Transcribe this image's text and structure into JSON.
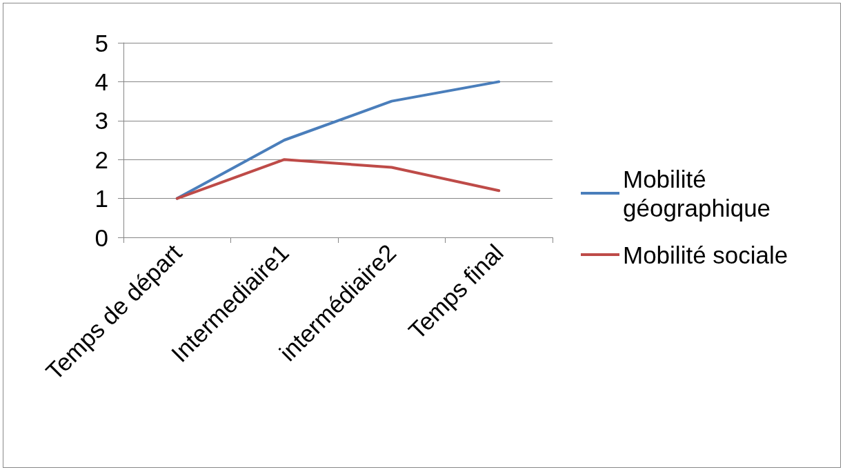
{
  "chart_data": {
    "type": "line",
    "categories": [
      "Temps de départ",
      "Intermediaire1",
      "intermédiaire2",
      "Temps final"
    ],
    "series": [
      {
        "name": "Mobilité géographique",
        "color": "#4a7ebb",
        "values": [
          1,
          2.5,
          3.5,
          4
        ]
      },
      {
        "name": "Mobilité sociale",
        "color": "#be4b48",
        "values": [
          1,
          2,
          1.8,
          1.2
        ]
      }
    ],
    "ylim": [
      0,
      5
    ],
    "yticks": [
      0,
      1,
      2,
      3,
      4,
      5
    ],
    "grid": "y",
    "legend": "right",
    "marker": "none",
    "line_style": "solid"
  }
}
